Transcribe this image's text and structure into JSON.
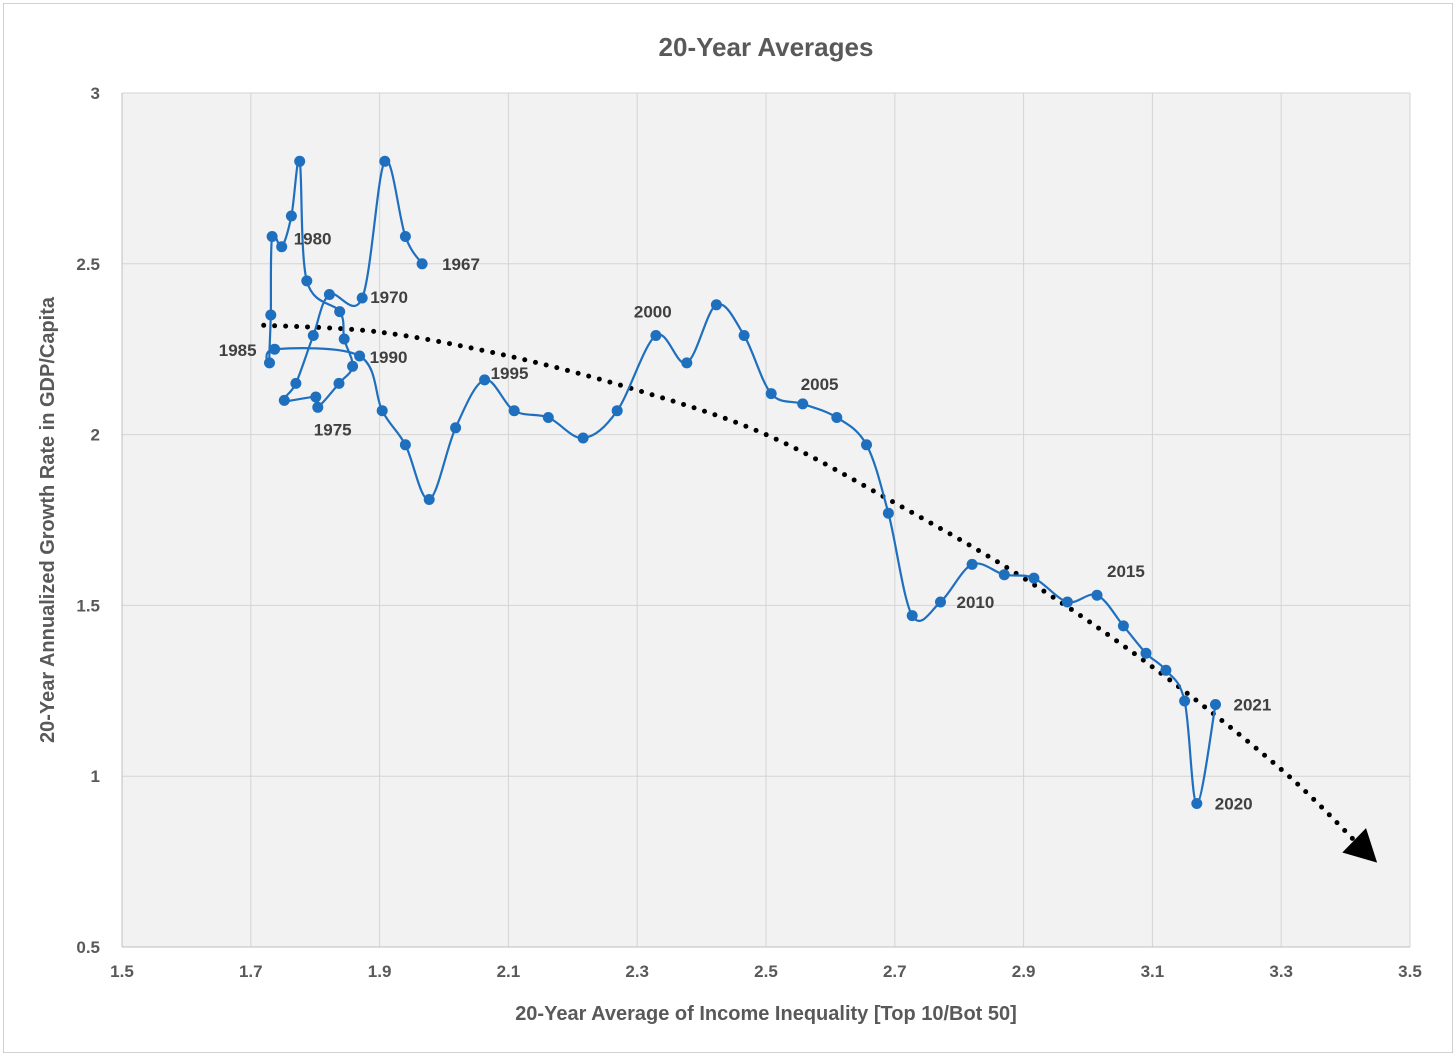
{
  "chart_data": {
    "type": "scatter",
    "title": "20-Year Averages",
    "xlabel": "20-Year Average of Income Inequality [Top 10/Bot 50]",
    "ylabel": "20-Year Annualized Growth Rate in GDP/Capita",
    "xlim": [
      1.5,
      3.5
    ],
    "ylim": [
      0.5,
      3
    ],
    "x_ticks": [
      "1.5",
      "1.7",
      "1.9",
      "2.1",
      "2.3",
      "2.5",
      "2.7",
      "2.9",
      "3.1",
      "3.3",
      "3.5"
    ],
    "y_ticks": [
      "0.5",
      "1",
      "1.5",
      "2",
      "2.5",
      "3"
    ],
    "grid": true,
    "plot_background": "#f2f2f2",
    "series_color": "#1f6fbf",
    "trend_color": "#000000",
    "trend_style": "dotted arrow",
    "points": [
      [
        1.966,
        2.5
      ],
      [
        1.94,
        2.58
      ],
      [
        1.908,
        2.8
      ],
      [
        1.873,
        2.4
      ],
      [
        1.822,
        2.41
      ],
      [
        1.797,
        2.29
      ],
      [
        1.77,
        2.15
      ],
      [
        1.752,
        2.1
      ],
      [
        1.801,
        2.11
      ],
      [
        1.804,
        2.08
      ],
      [
        1.837,
        2.15
      ],
      [
        1.858,
        2.2
      ],
      [
        1.845,
        2.28
      ],
      [
        1.838,
        2.36
      ],
      [
        1.787,
        2.45
      ],
      [
        1.776,
        2.8
      ],
      [
        1.763,
        2.64
      ],
      [
        1.748,
        2.55
      ],
      [
        1.733,
        2.58
      ],
      [
        1.731,
        2.35
      ],
      [
        1.729,
        2.21
      ],
      [
        1.737,
        2.25
      ],
      [
        1.869,
        2.23
      ],
      [
        1.904,
        2.07
      ],
      [
        1.94,
        1.97
      ],
      [
        1.977,
        1.81
      ],
      [
        2.018,
        2.02
      ],
      [
        2.063,
        2.16
      ],
      [
        2.109,
        2.07
      ],
      [
        2.162,
        2.05
      ],
      [
        2.216,
        1.99
      ],
      [
        2.269,
        2.07
      ],
      [
        2.329,
        2.29
      ],
      [
        2.377,
        2.21
      ],
      [
        2.423,
        2.38
      ],
      [
        2.466,
        2.29
      ],
      [
        2.508,
        2.12
      ],
      [
        2.557,
        2.09
      ],
      [
        2.61,
        2.05
      ],
      [
        2.656,
        1.97
      ],
      [
        2.69,
        1.77
      ],
      [
        2.727,
        1.47
      ],
      [
        2.771,
        1.51
      ],
      [
        2.82,
        1.62
      ],
      [
        2.87,
        1.59
      ],
      [
        2.916,
        1.58
      ],
      [
        2.968,
        1.51
      ],
      [
        3.014,
        1.53
      ],
      [
        3.055,
        1.44
      ],
      [
        3.09,
        1.36
      ],
      [
        3.121,
        1.31
      ],
      [
        3.15,
        1.22
      ],
      [
        3.169,
        0.92
      ],
      [
        3.198,
        1.21
      ]
    ],
    "labels": [
      {
        "text": "1967",
        "x": 1.966,
        "y": 2.5
      },
      {
        "text": "1970",
        "x": 1.873,
        "y": 2.4
      },
      {
        "text": "1975",
        "x": 1.804,
        "y": 2.08
      },
      {
        "text": "1980",
        "x": 1.748,
        "y": 2.55
      },
      {
        "text": "1985",
        "x": 1.737,
        "y": 2.25
      },
      {
        "text": "1990",
        "x": 1.869,
        "y": 2.23
      },
      {
        "text": "1995",
        "x": 2.063,
        "y": 2.16
      },
      {
        "text": "2000",
        "x": 2.329,
        "y": 2.29
      },
      {
        "text": "2005",
        "x": 2.557,
        "y": 2.09
      },
      {
        "text": "2010",
        "x": 2.771,
        "y": 1.51
      },
      {
        "text": "2015",
        "x": 3.014,
        "y": 1.53
      },
      {
        "text": "2020",
        "x": 3.169,
        "y": 0.92
      },
      {
        "text": "2021",
        "x": 3.198,
        "y": 1.21
      }
    ],
    "trend": [
      [
        1.72,
        2.32
      ],
      [
        1.9,
        2.3
      ],
      [
        2.1,
        2.23
      ],
      [
        2.3,
        2.13
      ],
      [
        2.5,
        2.0
      ],
      [
        2.7,
        1.8
      ],
      [
        2.9,
        1.58
      ],
      [
        3.1,
        1.32
      ],
      [
        3.3,
        1.02
      ],
      [
        3.42,
        0.8
      ]
    ]
  }
}
